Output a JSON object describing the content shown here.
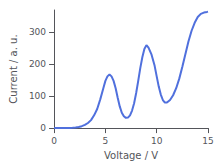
{
  "chart_data": {
    "type": "line",
    "xlabel": "Voltage / V",
    "ylabel": "Current / a. u.",
    "xlim": [
      0,
      15
    ],
    "ylim": [
      0,
      370
    ],
    "xticks": [
      0,
      5,
      10,
      15
    ],
    "yticks": [
      0,
      100,
      200,
      300
    ],
    "grid": false,
    "x": [
      0.0,
      0.3,
      0.6,
      0.9,
      1.2,
      1.5,
      1.8,
      2.1,
      2.4,
      2.7,
      3.0,
      3.3,
      3.6,
      3.9,
      4.2,
      4.5,
      4.8,
      5.0,
      5.2,
      5.4,
      5.6,
      5.8,
      6.0,
      6.2,
      6.4,
      6.6,
      6.8,
      7.0,
      7.2,
      7.4,
      7.6,
      7.8,
      8.0,
      8.2,
      8.4,
      8.6,
      8.8,
      9.0,
      9.2,
      9.5,
      9.8,
      10.0,
      10.2,
      10.4,
      10.6,
      10.8,
      11.0,
      11.3,
      11.6,
      11.9,
      12.2,
      12.5,
      12.8,
      13.1,
      13.4,
      13.7,
      14.0,
      14.3,
      14.6,
      14.9,
      15.0
    ],
    "values": [
      0.0,
      0.0,
      0.0,
      0.1,
      0.3,
      0.5,
      1.0,
      2.0,
      3.5,
      6.0,
      10.0,
      16.0,
      25.0,
      40.0,
      60.0,
      90.0,
      125.0,
      148.0,
      162.0,
      168.0,
      162.0,
      148.0,
      125.0,
      95.0,
      68.0,
      48.0,
      37.0,
      32.0,
      33.0,
      40.0,
      55.0,
      78.0,
      110.0,
      148.0,
      188.0,
      222.0,
      248.0,
      260.0,
      252.0,
      230.0,
      195.0,
      162.0,
      130.0,
      105.0,
      88.0,
      80.0,
      80.0,
      88.0,
      103.0,
      125.0,
      155.0,
      192.0,
      232.0,
      272.0,
      305.0,
      330.0,
      348.0,
      358.0,
      362.0,
      364.0,
      365.0
    ]
  }
}
